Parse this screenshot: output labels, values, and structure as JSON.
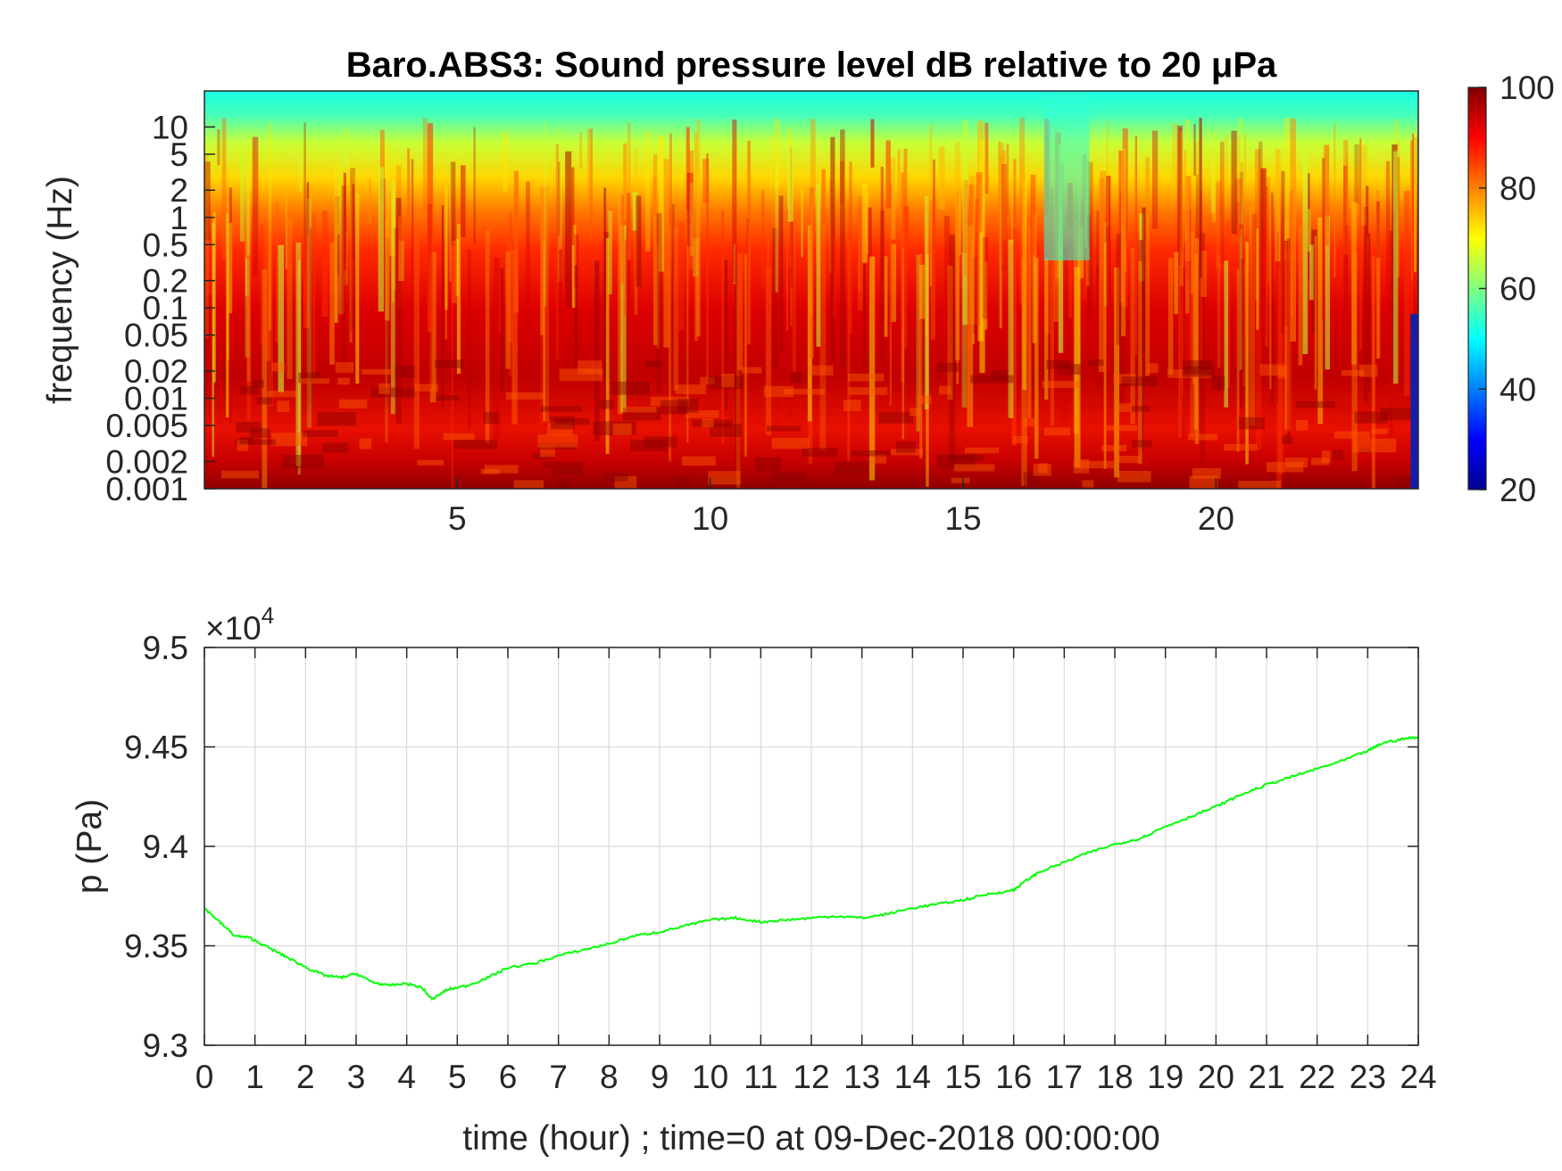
{
  "chart_data": [
    {
      "type": "heatmap",
      "title": "Baro.ABS3: Sound pressure level dB relative to 20 μPa",
      "ylabel": "frequency (Hz)",
      "xlabel": "",
      "x_ticks": [
        5,
        10,
        15,
        20
      ],
      "xlim": [
        0,
        24
      ],
      "y_scale": "log",
      "y_ticks": [
        0.001,
        0.002,
        0.005,
        0.01,
        0.02,
        0.05,
        0.1,
        0.2,
        0.5,
        1,
        2,
        5,
        10
      ],
      "ylim": [
        0.001,
        25
      ],
      "colormap": "jet",
      "colorbar_ticks": [
        20,
        40,
        60,
        80,
        100
      ],
      "clim": [
        20,
        100
      ]
    },
    {
      "type": "line",
      "title": "",
      "xlabel": "time (hour) ; time=0 at 09-Dec-2018 00:00:00",
      "ylabel": "p (Pa)",
      "y_multiplier": "×10",
      "y_multiplier_exp": "4",
      "xlim": [
        0,
        24
      ],
      "ylim": [
        9.3,
        9.5
      ],
      "x_ticks": [
        0,
        1,
        2,
        3,
        4,
        5,
        6,
        7,
        8,
        9,
        10,
        11,
        12,
        13,
        14,
        15,
        16,
        17,
        18,
        19,
        20,
        21,
        22,
        23,
        24
      ],
      "y_ticks": [
        "9.3",
        "9.35",
        "9.4",
        "9.45",
        "9.5"
      ],
      "grid": true,
      "series": [
        {
          "color": "#00ff00",
          "x": [
            0,
            0.3,
            0.6,
            0.9,
            1.2,
            1.5,
            1.8,
            2.1,
            2.4,
            2.7,
            3.0,
            3.3,
            3.6,
            4.0,
            4.3,
            4.5,
            4.8,
            5.2,
            5.6,
            6.0,
            6.5,
            7.0,
            7.5,
            8.0,
            8.5,
            9.0,
            9.5,
            10.0,
            10.5,
            11.0,
            11.5,
            12.0,
            12.5,
            13.0,
            13.5,
            14.0,
            14.5,
            15.0,
            15.5,
            16.0,
            16.2,
            16.5,
            17.0,
            17.5,
            18.0,
            18.5,
            19.0,
            19.5,
            20.0,
            20.5,
            21.0,
            21.5,
            22.0,
            22.5,
            23.0,
            23.3,
            23.7,
            24.0
          ],
          "y": [
            9.369,
            9.362,
            9.355,
            9.354,
            9.35,
            9.346,
            9.342,
            9.338,
            9.335,
            9.334,
            9.336,
            9.332,
            9.33,
            9.331,
            9.329,
            9.323,
            9.328,
            9.33,
            9.334,
            9.339,
            9.341,
            9.345,
            9.348,
            9.351,
            9.355,
            9.357,
            9.36,
            9.363,
            9.364,
            9.362,
            9.363,
            9.364,
            9.365,
            9.364,
            9.366,
            9.369,
            9.371,
            9.373,
            9.376,
            9.378,
            9.382,
            9.387,
            9.392,
            9.397,
            9.401,
            9.404,
            9.41,
            9.415,
            9.42,
            9.426,
            9.431,
            9.435,
            9.439,
            9.443,
            9.448,
            9.452,
            9.454,
            9.455
          ]
        }
      ]
    }
  ]
}
